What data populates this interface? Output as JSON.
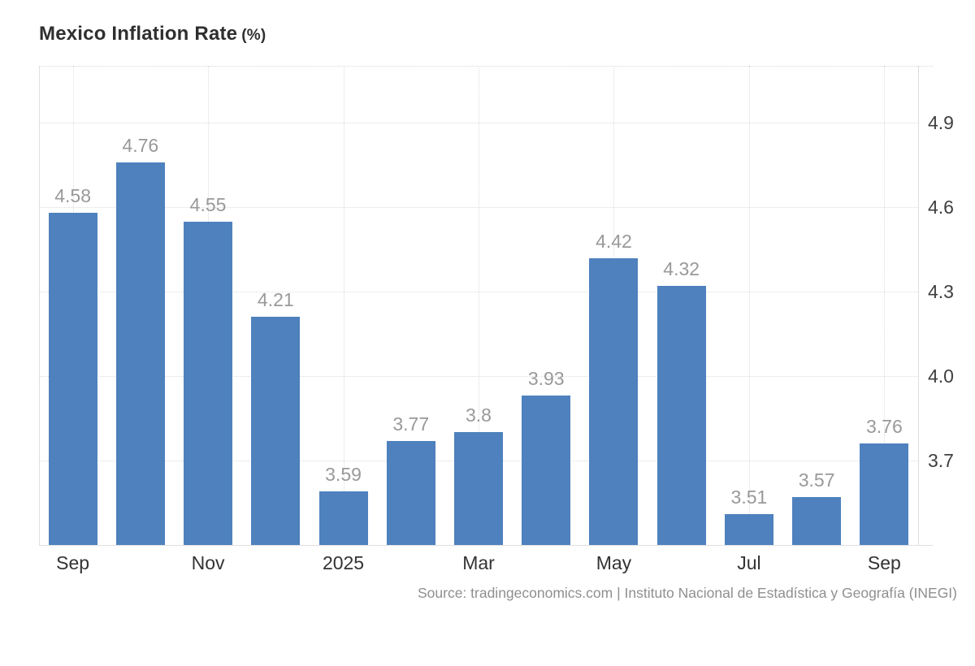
{
  "page": {
    "background": "#ffffff"
  },
  "header": {
    "title": "Mexico Inflation Rate",
    "unit_suffix": "(%)"
  },
  "footer": {
    "source_text": "Source: tradingeconomics.com | Instituto Nacional de Estadística y Geografía (INEGI)"
  },
  "chart_data": {
    "type": "bar",
    "title": "Mexico Inflation Rate (%)",
    "bar_count": 13,
    "values": [
      4.58,
      4.76,
      4.55,
      4.21,
      3.59,
      3.77,
      3.8,
      3.93,
      4.42,
      4.32,
      3.51,
      3.57,
      3.76
    ],
    "value_labels": [
      "4.58",
      "4.76",
      "4.55",
      "4.21",
      "3.59",
      "3.77",
      "3.8",
      "3.93",
      "4.42",
      "4.32",
      "3.51",
      "3.57",
      "3.76"
    ],
    "x_ticks": [
      {
        "bar_index": 0,
        "label": "Sep"
      },
      {
        "bar_index": 2,
        "label": "Nov"
      },
      {
        "bar_index": 4,
        "label": "2025"
      },
      {
        "bar_index": 6,
        "label": "Mar"
      },
      {
        "bar_index": 8,
        "label": "May"
      },
      {
        "bar_index": 10,
        "label": "Jul"
      },
      {
        "bar_index": 12,
        "label": "Sep"
      }
    ],
    "y_ticks": [
      {
        "value": 4.9,
        "label": "4.9"
      },
      {
        "value": 4.6,
        "label": "4.6"
      },
      {
        "value": 4.3,
        "label": "4.3"
      },
      {
        "value": 4.0,
        "label": "4.0"
      },
      {
        "value": 3.7,
        "label": "3.7"
      }
    ],
    "ylim": [
      3.4,
      5.103
    ],
    "grid_style": "dotted",
    "legend": "none",
    "colors": {
      "bar": "#4e81bd",
      "value_label": "#999999",
      "axis_label": "#3f3f3f",
      "grid": "#dcdcdc"
    }
  }
}
